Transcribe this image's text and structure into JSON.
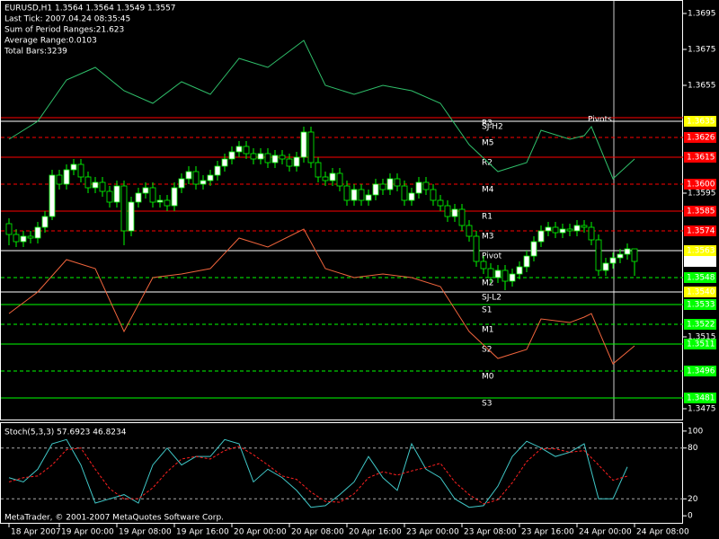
{
  "chart_data": [
    {
      "type": "candlestick",
      "title": "EURUSD,H1  1.3564 1.3564 1.3549 1.3557",
      "info": [
        "Last Tick: 2007.04.24 08:35:45",
        "Sum of Period Ranges:21.623",
        "Average Range:0.0103",
        "Total Bars:3239"
      ],
      "annotation": "Pivots",
      "xlim": [
        -1.25,
        93.75
      ],
      "ylim": [
        1.3469,
        1.3702
      ],
      "yticks": [
        1.3695,
        1.3675,
        1.3655,
        1.3595,
        1.3515,
        1.3475
      ],
      "xticks": [
        {
          "value": 0,
          "label": "18 Apr 2007"
        },
        {
          "value": 7,
          "label": "19 Apr 00:00"
        },
        {
          "value": 15,
          "label": "19 Apr 08:00"
        },
        {
          "value": 23,
          "label": "19 Apr 16:00"
        },
        {
          "value": 31,
          "label": "20 Apr 00:00"
        },
        {
          "value": 39,
          "label": "20 Apr 08:00"
        },
        {
          "value": 47,
          "label": "20 Apr 16:00"
        },
        {
          "value": 55,
          "label": "23 Apr 00:00"
        },
        {
          "value": 63,
          "label": "23 Apr 08:00"
        },
        {
          "value": 71,
          "label": "23 Apr 16:00"
        },
        {
          "value": 79,
          "label": "24 Apr 00:00"
        },
        {
          "value": 87,
          "label": "24 Apr 08:00"
        }
      ],
      "open": [
        1.3578,
        1.3572,
        1.3568,
        1.3571,
        1.357,
        1.3576,
        1.3582,
        1.3605,
        1.36,
        1.3608,
        1.3611,
        1.3604,
        1.3598,
        1.3601,
        1.3596,
        1.359,
        1.3599,
        1.3574,
        1.359,
        1.3595,
        1.3598,
        1.359,
        1.3591,
        1.3588,
        1.3598,
        1.3603,
        1.3607,
        1.36,
        1.3602,
        1.3605,
        1.361,
        1.3614,
        1.3618,
        1.3621,
        1.3617,
        1.3614,
        1.3617,
        1.3612,
        1.3616,
        1.3614,
        1.361,
        1.3615,
        1.3629,
        1.3612,
        1.3604,
        1.3602,
        1.3606,
        1.3599,
        1.3591,
        1.3597,
        1.3591,
        1.3594,
        1.36,
        1.3597,
        1.3603,
        1.3599,
        1.3591,
        1.3595,
        1.3601,
        1.3597,
        1.3591,
        1.3588,
        1.3582,
        1.3586,
        1.3577,
        1.3571,
        1.3557,
        1.3553,
        1.3548,
        1.3552,
        1.3546,
        1.355,
        1.3554,
        1.356,
        1.3568,
        1.3574,
        1.3576,
        1.3573,
        1.3575,
        1.3574,
        1.3577,
        1.3576,
        1.3569,
        1.3552,
        1.3556,
        1.3559,
        1.3561,
        1.3564
      ],
      "high": [
        1.3581,
        1.3575,
        1.3574,
        1.3574,
        1.3579,
        1.3585,
        1.3608,
        1.3608,
        1.3611,
        1.3614,
        1.3614,
        1.3607,
        1.3604,
        1.3604,
        1.3599,
        1.3602,
        1.3602,
        1.3593,
        1.3598,
        1.3601,
        1.3601,
        1.3594,
        1.3594,
        1.3601,
        1.3606,
        1.361,
        1.361,
        1.3605,
        1.3608,
        1.3613,
        1.3617,
        1.3621,
        1.3624,
        1.3624,
        1.362,
        1.362,
        1.362,
        1.3619,
        1.3619,
        1.3617,
        1.3618,
        1.3632,
        1.3632,
        1.3615,
        1.3607,
        1.3609,
        1.3609,
        1.3602,
        1.36,
        1.36,
        1.3597,
        1.3603,
        1.3603,
        1.3606,
        1.3606,
        1.3602,
        1.3598,
        1.3604,
        1.3604,
        1.36,
        1.3594,
        1.3591,
        1.3589,
        1.3589,
        1.358,
        1.3574,
        1.356,
        1.3556,
        1.3555,
        1.3555,
        1.3553,
        1.3557,
        1.3563,
        1.3571,
        1.3577,
        1.3579,
        1.3579,
        1.3578,
        1.3578,
        1.358,
        1.358,
        1.3579,
        1.3572,
        1.3559,
        1.3562,
        1.3564,
        1.3567,
        1.3564
      ],
      "low": [
        1.3566,
        1.3565,
        1.3565,
        1.3567,
        1.3567,
        1.3573,
        1.358,
        1.3597,
        1.3597,
        1.3605,
        1.3601,
        1.3595,
        1.3595,
        1.3593,
        1.3587,
        1.3587,
        1.3566,
        1.3571,
        1.3587,
        1.3592,
        1.3587,
        1.3587,
        1.3585,
        1.3585,
        1.3595,
        1.36,
        1.3597,
        1.3597,
        1.3599,
        1.3602,
        1.3607,
        1.3611,
        1.3615,
        1.3614,
        1.3611,
        1.3611,
        1.3609,
        1.3609,
        1.3611,
        1.3607,
        1.3607,
        1.3612,
        1.3609,
        1.3601,
        1.3599,
        1.3599,
        1.3596,
        1.3588,
        1.3588,
        1.3588,
        1.3588,
        1.3591,
        1.3594,
        1.3594,
        1.3596,
        1.3588,
        1.3588,
        1.3592,
        1.3594,
        1.3588,
        1.3585,
        1.3579,
        1.3579,
        1.3574,
        1.3568,
        1.3554,
        1.355,
        1.3545,
        1.3545,
        1.3541,
        1.3543,
        1.3547,
        1.3551,
        1.3557,
        1.3565,
        1.3571,
        1.357,
        1.357,
        1.3571,
        1.3571,
        1.3573,
        1.3566,
        1.3549,
        1.3549,
        1.3553,
        1.3556,
        1.3558,
        1.3549
      ],
      "close": [
        1.3572,
        1.3568,
        1.3571,
        1.357,
        1.3576,
        1.3582,
        1.3605,
        1.36,
        1.3608,
        1.3611,
        1.3604,
        1.3598,
        1.3601,
        1.3596,
        1.359,
        1.3599,
        1.3574,
        1.359,
        1.3595,
        1.3598,
        1.359,
        1.3591,
        1.3588,
        1.3598,
        1.3603,
        1.3607,
        1.36,
        1.3602,
        1.3605,
        1.361,
        1.3614,
        1.3618,
        1.3621,
        1.3617,
        1.3614,
        1.3617,
        1.3612,
        1.3616,
        1.3614,
        1.361,
        1.3615,
        1.3629,
        1.3612,
        1.3604,
        1.3602,
        1.3606,
        1.3599,
        1.3591,
        1.3597,
        1.3591,
        1.3594,
        1.36,
        1.3597,
        1.3603,
        1.3599,
        1.3591,
        1.3595,
        1.3601,
        1.3597,
        1.3591,
        1.3588,
        1.3582,
        1.3586,
        1.3577,
        1.3571,
        1.3557,
        1.3553,
        1.3548,
        1.3552,
        1.3546,
        1.355,
        1.3554,
        1.356,
        1.3568,
        1.3574,
        1.3576,
        1.3573,
        1.3575,
        1.3574,
        1.3577,
        1.3576,
        1.3569,
        1.3552,
        1.3556,
        1.3559,
        1.3561,
        1.3564,
        1.3557
      ],
      "lines": [
        {
          "color": "#2fbf6a",
          "x": [
            0,
            4,
            8,
            12,
            16,
            20,
            24,
            28,
            32,
            36,
            41,
            44,
            48,
            52,
            56,
            60,
            64,
            68,
            72,
            74,
            78,
            80,
            81,
            84,
            87
          ],
          "values": [
            1.3625,
            1.3635,
            1.3658,
            1.3665,
            1.3652,
            1.3645,
            1.3657,
            1.365,
            1.367,
            1.3665,
            1.368,
            1.3655,
            1.365,
            1.3655,
            1.3652,
            1.3645,
            1.3622,
            1.3607,
            1.3612,
            1.363,
            1.3625,
            1.3627,
            1.3632,
            1.3603,
            1.3614
          ]
        },
        {
          "color": "#f0643c",
          "x": [
            0,
            4,
            8,
            12,
            16,
            20,
            24,
            28,
            32,
            36,
            41,
            44,
            48,
            52,
            56,
            60,
            64,
            68,
            72,
            74,
            78,
            80,
            81,
            84,
            87
          ],
          "values": [
            1.3528,
            1.354,
            1.3558,
            1.3553,
            1.3518,
            1.3548,
            1.355,
            1.3553,
            1.357,
            1.3565,
            1.3575,
            1.3553,
            1.3548,
            1.355,
            1.3548,
            1.3543,
            1.3518,
            1.3503,
            1.3508,
            1.3525,
            1.3523,
            1.3526,
            1.3528,
            1.35,
            1.351
          ]
        }
      ],
      "levels": [
        {
          "name": "R3",
          "value": 1.3637,
          "color": "#ff0000",
          "dash": false
        },
        {
          "name": "SJ-H2",
          "value": 1.3635,
          "color": "#ffffff",
          "dash": false,
          "label": "1.3635",
          "box": "#ffff00",
          "box_text": "#000000"
        },
        {
          "name": "M5",
          "value": 1.3626,
          "color": "#ff0000",
          "dash": true,
          "label": "1.3626",
          "box": "#ff0000",
          "box_text": "#ffffff"
        },
        {
          "name": "R2",
          "value": 1.3615,
          "color": "#ff0000",
          "dash": false,
          "label": "1.3615",
          "box": "#ff0000",
          "box_text": "#ffffff"
        },
        {
          "name": "M4",
          "value": 1.36,
          "color": "#ff0000",
          "dash": true,
          "label": "1.3600",
          "box": "#ff0000",
          "box_text": "#ffffff"
        },
        {
          "name": "R1",
          "value": 1.3585,
          "color": "#ff0000",
          "dash": false,
          "label": "1.3585",
          "box": "#ff0000",
          "box_text": "#ffffff"
        },
        {
          "name": "M3",
          "value": 1.3574,
          "color": "#ff0000",
          "dash": true,
          "label": "1.3574",
          "box": "#ff0000",
          "box_text": "#ffffff"
        },
        {
          "name": "Pivot",
          "value": 1.3563,
          "color": "#ffffff",
          "dash": false,
          "label": "1.3563",
          "box": "#ffff00",
          "box_text": "#000000"
        },
        {
          "name": "M2",
          "value": 1.3548,
          "color": "#00ff00",
          "dash": true,
          "label": "1.3548",
          "box": "#00ff00",
          "box_text": "#000000"
        },
        {
          "name": "SJ-L2",
          "value": 1.354,
          "color": "#ffffff",
          "dash": false,
          "label": "1.3540",
          "box": "#ffff00",
          "box_text": "#000000"
        },
        {
          "name": "S1",
          "value": 1.3533,
          "color": "#00ff00",
          "dash": false,
          "label": "1.3533",
          "box": "#00ff00",
          "box_text": "#000000"
        },
        {
          "name": "M1",
          "value": 1.3522,
          "color": "#00ff00",
          "dash": true,
          "label": "1.3522",
          "box": "#00ff00",
          "box_text": "#000000"
        },
        {
          "name": "S2",
          "value": 1.3511,
          "color": "#00ff00",
          "dash": false,
          "label": "1.3511",
          "box": "#00ff00",
          "box_text": "#000000"
        },
        {
          "name": "M0",
          "value": 1.3496,
          "color": "#00ff00",
          "dash": true,
          "label": "1.3496",
          "box": "#00ff00",
          "box_text": "#000000"
        },
        {
          "name": "S3",
          "value": 1.3481,
          "color": "#00ff00",
          "dash": false,
          "label": "1.3481",
          "box": "#00ff00",
          "box_text": "#000000"
        }
      ],
      "last": {
        "value": 1.3557,
        "label": "1.3557"
      }
    },
    {
      "type": "stochastic",
      "title": "Stoch(5,3,3) 57.6923 46.8234",
      "annotation": "MetaTrader, © 2001-2007 MetaQuotes Software Corp.",
      "ylim": [
        -8.3,
        109.4
      ],
      "yticks": [
        0,
        20,
        80,
        100
      ],
      "levels": [
        80,
        20
      ],
      "x": [
        0,
        2,
        4,
        6,
        8,
        10,
        12,
        14,
        16,
        18,
        20,
        22,
        24,
        26,
        28,
        30,
        32,
        34,
        36,
        38,
        40,
        42,
        44,
        46,
        48,
        50,
        52,
        54,
        56,
        58,
        60,
        62,
        64,
        66,
        68,
        70,
        72,
        74,
        76,
        78,
        80,
        82,
        84,
        86
      ],
      "lines": [
        {
          "color": "#40c8c8",
          "dash": false,
          "values": [
            45,
            40,
            55,
            85,
            90,
            60,
            15,
            20,
            25,
            15,
            60,
            80,
            60,
            70,
            70,
            90,
            85,
            40,
            55,
            45,
            30,
            10,
            12,
            25,
            40,
            70,
            45,
            30,
            85,
            55,
            45,
            20,
            10,
            12,
            35,
            70,
            88,
            80,
            70,
            75,
            85,
            20,
            20,
            57.6923
          ]
        },
        {
          "color": "#ff2020",
          "dash": true,
          "values": [
            40,
            45,
            47,
            60,
            78,
            80,
            55,
            32,
            20,
            20,
            33,
            52,
            67,
            70,
            67,
            77,
            82,
            72,
            60,
            47,
            43,
            28,
            17,
            16,
            26,
            45,
            52,
            48,
            53,
            57,
            62,
            40,
            25,
            14,
            19,
            39,
            64,
            79,
            79,
            75,
            77,
            60,
            42,
            46.8234
          ]
        }
      ]
    }
  ]
}
